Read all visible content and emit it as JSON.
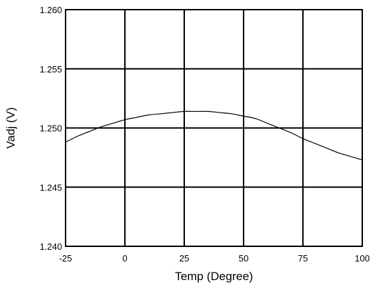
{
  "chart_data": {
    "type": "line",
    "title": "",
    "xlabel": "Temp (Degree)",
    "ylabel": "Vadj (V)",
    "xlim": [
      -25,
      100
    ],
    "ylim": [
      1.24,
      1.26
    ],
    "x_ticks": [
      -25,
      0,
      25,
      50,
      75,
      100
    ],
    "y_ticks": [
      1.24,
      1.245,
      1.25,
      1.255,
      1.26
    ],
    "x_tick_labels": [
      "-25",
      "0",
      "25",
      "50",
      "75",
      "100"
    ],
    "y_tick_labels": [
      "1.240",
      "1.245",
      "1.250",
      "1.255",
      "1.260"
    ],
    "grid": true,
    "legend": "none",
    "line_color": "#000000",
    "series": [
      {
        "x": [
          -25,
          -20,
          -15,
          -10,
          -5,
          0,
          5,
          10,
          15,
          20,
          25,
          30,
          35,
          40,
          45,
          50,
          55,
          60,
          65,
          70,
          75,
          80,
          85,
          90,
          95,
          100
        ],
        "y": [
          1.2488,
          1.2493,
          1.2497,
          1.2501,
          1.2504,
          1.2507,
          1.2509,
          1.2511,
          1.2512,
          1.2513,
          1.2514,
          1.2514,
          1.2514,
          1.2513,
          1.2512,
          1.251,
          1.2508,
          1.2504,
          1.25,
          1.2496,
          1.2491,
          1.2487,
          1.2483,
          1.2479,
          1.2476,
          1.2473
        ]
      }
    ]
  }
}
